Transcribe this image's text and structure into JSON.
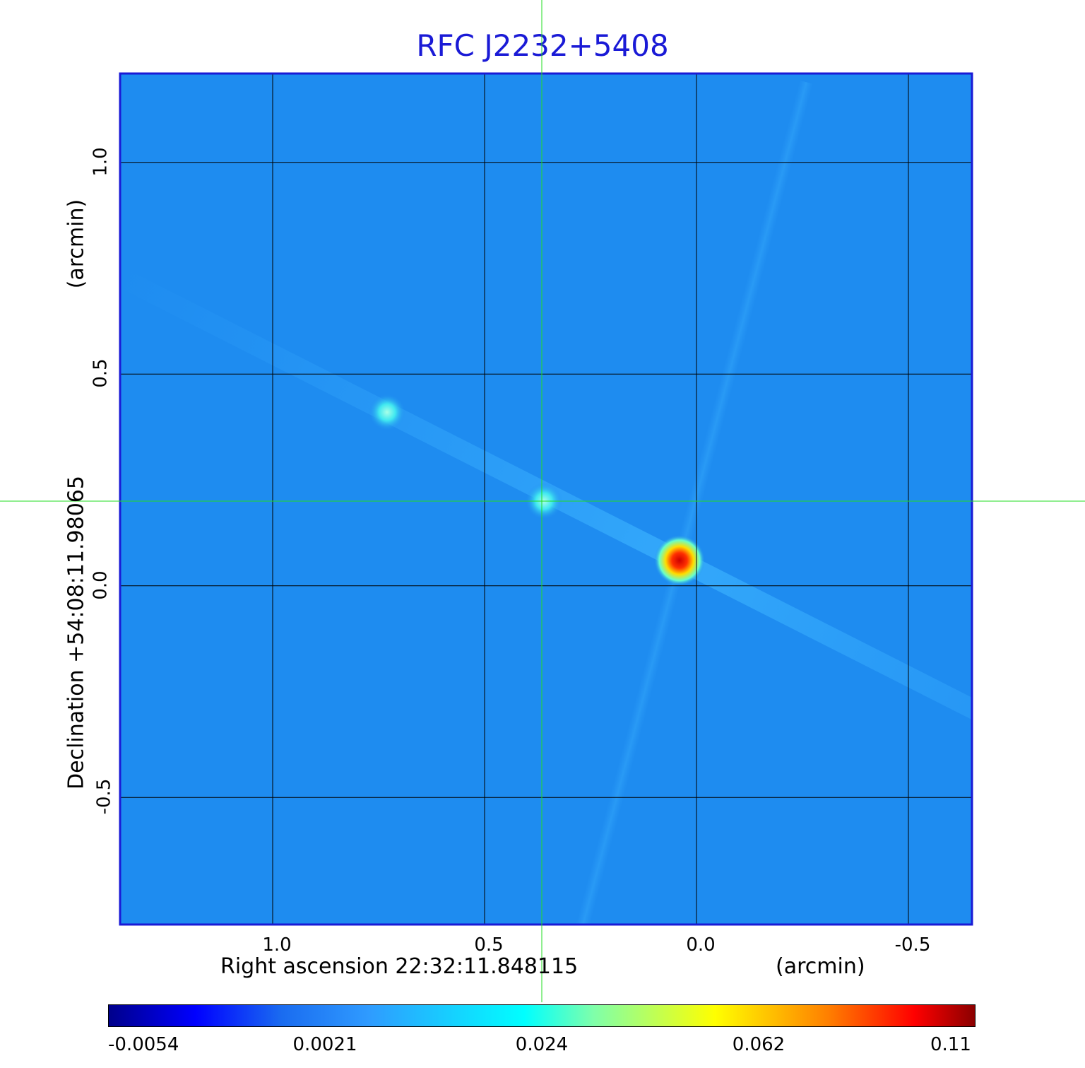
{
  "chart_data": {
    "type": "heatmap",
    "title": "RFC J2232+5408",
    "xlabel": "Right ascension  22:32:11.848115",
    "xunit": "(arcmin)",
    "ylabel": "Declination  +54:08:11.98065",
    "yunit": "(arcmin)",
    "x_ticks": [
      "1.0",
      "0.5",
      "0.0",
      "-0.5"
    ],
    "x_tick_values": [
      1.0,
      0.5,
      0.0,
      -0.5
    ],
    "y_ticks": [
      "1.0",
      "0.5",
      "0.0",
      "-0.5"
    ],
    "y_tick_values": [
      1.0,
      0.5,
      0.0,
      -0.5
    ],
    "xlim": [
      1.36,
      -0.65
    ],
    "ylim": [
      -0.8,
      1.21
    ],
    "grid": true,
    "colorbar": {
      "labels": [
        "-0.0054",
        "0.0021",
        "0.024",
        "0.062",
        "0.11"
      ],
      "colormap": "jet",
      "min": -0.0054,
      "max": 0.11
    },
    "sources": [
      {
        "x": 0.04,
        "y": 0.06,
        "intensity": 0.11
      },
      {
        "x": 0.36,
        "y": 0.2,
        "intensity": 0.024
      },
      {
        "x": 0.73,
        "y": 0.41,
        "intensity": 0.024
      }
    ],
    "crosshair": {
      "x": 0.365,
      "y": 0.2
    }
  },
  "colors": {
    "background_map": "#1e8cf0",
    "frame": "#1a1ad6",
    "grid": "#000000",
    "crosshair": "#22dd22"
  }
}
